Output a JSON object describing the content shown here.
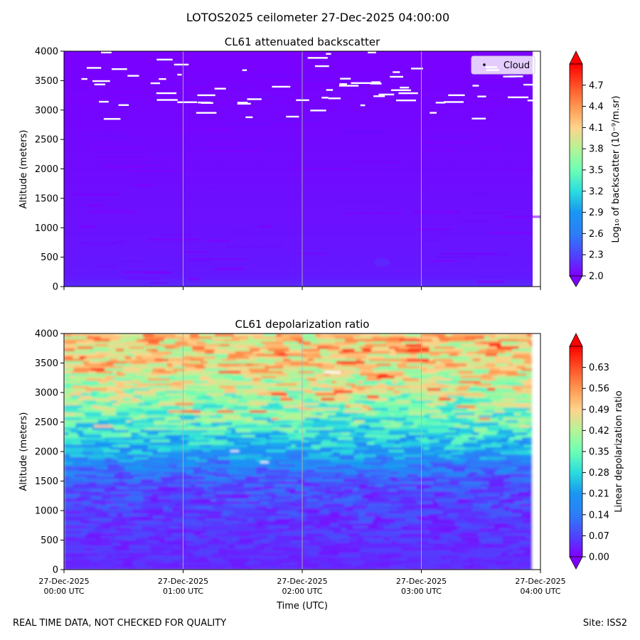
{
  "suptitle": "LOTOS2025 ceilometer 27-Dec-2025 04:00:00",
  "footer": {
    "left": "REAL TIME DATA, NOT CHECKED FOR QUALITY",
    "right": "Site: ISS2"
  },
  "colors": {
    "rainbow": [
      "#8000ff",
      "#4f44fd",
      "#2c7ef7",
      "#1996f3",
      "#2adddd",
      "#6dfeb5",
      "#b4f496",
      "#ffd38c",
      "#ff964e",
      "#ff4f25",
      "#ff0000"
    ],
    "bg_backscatter": "#7a00ff",
    "cloud": "#ffffff",
    "gridline": "#b0b0b0"
  },
  "chart_data": [
    {
      "type": "heatmap",
      "title": "CL61 attenuated backscatter",
      "ylabel": "Altitude (meters)",
      "xlabel": "",
      "x_range_hours_utc": [
        0,
        4
      ],
      "ylim": [
        0,
        4000
      ],
      "yticks": [
        0,
        500,
        1000,
        1500,
        2000,
        2500,
        3000,
        3500,
        4000
      ],
      "xticks_hours": [
        0,
        1,
        2,
        3,
        4
      ],
      "xtick_labels_shown": false,
      "grid": "vertical lines at each hour",
      "colorbar": {
        "label": "Log₁₀ of backscatter (10⁻⁹/m.sr)",
        "range": [
          2.0,
          5.0
        ],
        "ticks": [
          "2.0",
          "2.3",
          "2.6",
          "2.9",
          "3.2",
          "3.5",
          "3.8",
          "4.1",
          "4.4",
          "4.7"
        ],
        "extend": "both"
      },
      "legend": {
        "entries": [
          "Cloud"
        ],
        "position": "top-right"
      },
      "field_description": "uniform low values ~2.0-2.1 across all altitudes and times",
      "cloud_detections": {
        "altitude_range_m": [
          2850,
          4000
        ],
        "count_approx": 70
      }
    },
    {
      "type": "heatmap",
      "title": "CL61 depolarization ratio",
      "ylabel": "Altitude (meters)",
      "xlabel": "Time (UTC)",
      "x_range_hours_utc": [
        0,
        4
      ],
      "ylim": [
        0,
        4000
      ],
      "yticks": [
        0,
        500,
        1000,
        1500,
        2000,
        2500,
        3000,
        3500,
        4000
      ],
      "xticks_hours": [
        0,
        1,
        2,
        3,
        4
      ],
      "xtick_labels": [
        [
          "27-Dec-2025",
          "00:00 UTC"
        ],
        [
          "27-Dec-2025",
          "01:00 UTC"
        ],
        [
          "27-Dec-2025",
          "02:00 UTC"
        ],
        [
          "27-Dec-2025",
          "03:00 UTC"
        ],
        [
          "27-Dec-2025",
          "04:00 UTC"
        ]
      ],
      "grid": "vertical lines at each hour",
      "colorbar": {
        "label": "Linear depolarization ratio",
        "range": [
          0.0,
          0.7
        ],
        "ticks": [
          "0.00",
          "0.07",
          "0.14",
          "0.21",
          "0.28",
          "0.35",
          "0.42",
          "0.49",
          "0.56",
          "0.63"
        ],
        "extend": "both"
      },
      "profile_vs_altitude": {
        "altitude_m": [
          0,
          500,
          1000,
          1500,
          1800,
          2000,
          2500,
          3000,
          3500,
          4000
        ],
        "typical_ratio": [
          0.04,
          0.05,
          0.06,
          0.09,
          0.16,
          0.22,
          0.33,
          0.42,
          0.48,
          0.5
        ]
      },
      "valid_data_end_hours": 3.93
    }
  ]
}
